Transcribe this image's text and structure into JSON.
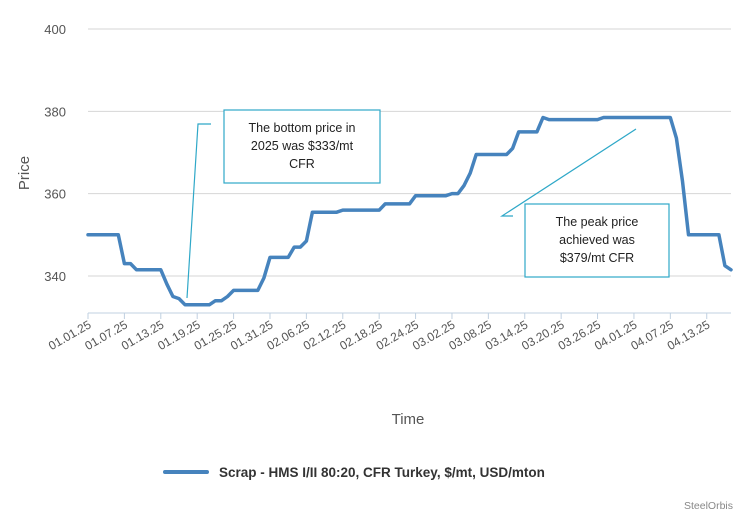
{
  "chart_data": {
    "type": "line",
    "xlabel": "Time",
    "ylabel": "Price",
    "ylim": [
      331,
      400
    ],
    "yticks": [
      340,
      360,
      380,
      400
    ],
    "grid": true,
    "legend_position": "bottom",
    "x_tick_labels": [
      "01.01.25",
      "01.07.25",
      "01.13.25",
      "01.19.25",
      "01.25.25",
      "01.31.25",
      "02.06.25",
      "02.12.25",
      "02.18.25",
      "02.24.25",
      "03.02.25",
      "03.08.25",
      "03.14.25",
      "03.20.25",
      "03.26.25",
      "04.01.25",
      "04.07.25",
      "04.13.25"
    ],
    "x_range": [
      "01.01.25",
      "04.17.25"
    ],
    "series": [
      {
        "name": "Scrap - HMS I/II 80:20, CFR Turkey, $/mt, USD/mton",
        "color": "#4683bd",
        "points": [
          [
            "01.01.25",
            350
          ],
          [
            "01.02.25",
            350
          ],
          [
            "01.03.25",
            350
          ],
          [
            "01.04.25",
            350
          ],
          [
            "01.05.25",
            350
          ],
          [
            "01.06.25",
            350
          ],
          [
            "01.07.25",
            343
          ],
          [
            "01.08.25",
            343
          ],
          [
            "01.09.25",
            341.5
          ],
          [
            "01.10.25",
            341.5
          ],
          [
            "01.11.25",
            341.5
          ],
          [
            "01.12.25",
            341.5
          ],
          [
            "01.13.25",
            341.5
          ],
          [
            "01.14.25",
            338
          ],
          [
            "01.15.25",
            335
          ],
          [
            "01.16.25",
            334.5
          ],
          [
            "01.17.25",
            333
          ],
          [
            "01.18.25",
            333
          ],
          [
            "01.19.25",
            333
          ],
          [
            "01.20.25",
            333
          ],
          [
            "01.21.25",
            333
          ],
          [
            "01.22.25",
            334
          ],
          [
            "01.23.25",
            334
          ],
          [
            "01.24.25",
            335
          ],
          [
            "01.25.25",
            336.5
          ],
          [
            "01.26.25",
            336.5
          ],
          [
            "01.27.25",
            336.5
          ],
          [
            "01.28.25",
            336.5
          ],
          [
            "01.29.25",
            336.5
          ],
          [
            "01.30.25",
            339.5
          ],
          [
            "01.31.25",
            344.5
          ],
          [
            "02.01.25",
            344.5
          ],
          [
            "02.02.25",
            344.5
          ],
          [
            "02.03.25",
            344.5
          ],
          [
            "02.04.25",
            347
          ],
          [
            "02.05.25",
            347
          ],
          [
            "02.06.25",
            348.5
          ],
          [
            "02.07.25",
            355.5
          ],
          [
            "02.08.25",
            355.5
          ],
          [
            "02.09.25",
            355.5
          ],
          [
            "02.10.25",
            355.5
          ],
          [
            "02.11.25",
            355.5
          ],
          [
            "02.12.25",
            356
          ],
          [
            "02.13.25",
            356
          ],
          [
            "02.14.25",
            356
          ],
          [
            "02.15.25",
            356
          ],
          [
            "02.16.25",
            356
          ],
          [
            "02.17.25",
            356
          ],
          [
            "02.18.25",
            356
          ],
          [
            "02.19.25",
            357.5
          ],
          [
            "02.20.25",
            357.5
          ],
          [
            "02.21.25",
            357.5
          ],
          [
            "02.22.25",
            357.5
          ],
          [
            "02.23.25",
            357.5
          ],
          [
            "02.24.25",
            359.5
          ],
          [
            "02.25.25",
            359.5
          ],
          [
            "02.26.25",
            359.5
          ],
          [
            "02.27.25",
            359.5
          ],
          [
            "02.28.25",
            359.5
          ],
          [
            "03.01.25",
            359.5
          ],
          [
            "03.02.25",
            360
          ],
          [
            "03.03.25",
            360
          ],
          [
            "03.04.25",
            362
          ],
          [
            "03.05.25",
            365
          ],
          [
            "03.06.25",
            369.5
          ],
          [
            "03.07.25",
            369.5
          ],
          [
            "03.08.25",
            369.5
          ],
          [
            "03.09.25",
            369.5
          ],
          [
            "03.10.25",
            369.5
          ],
          [
            "03.11.25",
            369.5
          ],
          [
            "03.12.25",
            371
          ],
          [
            "03.13.25",
            375
          ],
          [
            "03.14.25",
            375
          ],
          [
            "03.15.25",
            375
          ],
          [
            "03.16.25",
            375
          ],
          [
            "03.17.25",
            378.5
          ],
          [
            "03.18.25",
            378
          ],
          [
            "03.19.25",
            378
          ],
          [
            "03.20.25",
            378
          ],
          [
            "03.21.25",
            378
          ],
          [
            "03.22.25",
            378
          ],
          [
            "03.23.25",
            378
          ],
          [
            "03.24.25",
            378
          ],
          [
            "03.25.25",
            378
          ],
          [
            "03.26.25",
            378
          ],
          [
            "03.27.25",
            378.5
          ],
          [
            "03.28.25",
            378.5
          ],
          [
            "03.29.25",
            378.5
          ],
          [
            "03.30.25",
            378.5
          ],
          [
            "03.31.25",
            378.5
          ],
          [
            "04.01.25",
            378.5
          ],
          [
            "04.02.25",
            378.5
          ],
          [
            "04.03.25",
            378.5
          ],
          [
            "04.04.25",
            378.5
          ],
          [
            "04.05.25",
            378.5
          ],
          [
            "04.06.25",
            378.5
          ],
          [
            "04.07.25",
            378.5
          ],
          [
            "04.08.25",
            373.5
          ],
          [
            "04.09.25",
            363
          ],
          [
            "04.10.25",
            350
          ],
          [
            "04.11.25",
            350
          ],
          [
            "04.12.25",
            350
          ],
          [
            "04.13.25",
            350
          ],
          [
            "04.14.25",
            350
          ],
          [
            "04.15.25",
            350
          ],
          [
            "04.16.25",
            342.5
          ],
          [
            "04.17.25",
            341.5
          ]
        ]
      }
    ],
    "annotations": [
      {
        "lines": [
          "The bottom price in",
          "2025 was $333/mt",
          "CFR"
        ]
      },
      {
        "lines": [
          "The peak price",
          "achieved was",
          "$379/mt CFR"
        ]
      }
    ]
  },
  "credit": "SteelOrbis"
}
